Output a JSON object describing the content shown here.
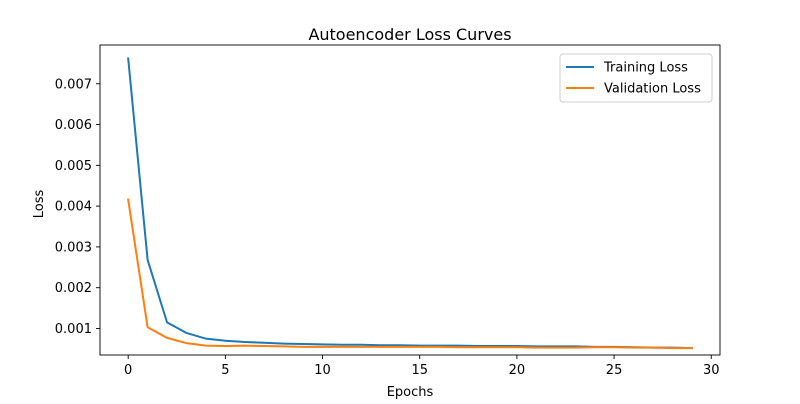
{
  "chart_data": {
    "type": "line",
    "title": "Autoencoder Loss Curves",
    "xlabel": "Epochs",
    "ylabel": "Loss",
    "xlim": [
      -1.45,
      30.45
    ],
    "ylim": [
      0.00035,
      0.00795
    ],
    "x_ticks": [
      0,
      5,
      10,
      15,
      20,
      25,
      30
    ],
    "x_tick_labels": [
      "0",
      "5",
      "10",
      "15",
      "20",
      "25",
      "30"
    ],
    "y_ticks": [
      0.001,
      0.002,
      0.003,
      0.004,
      0.005,
      0.006,
      0.007
    ],
    "y_tick_labels": [
      "0.001",
      "0.002",
      "0.003",
      "0.004",
      "0.005",
      "0.006",
      "0.007"
    ],
    "grid": false,
    "legend_position": "top-right",
    "x": [
      0,
      1,
      2,
      3,
      4,
      5,
      6,
      7,
      8,
      9,
      10,
      11,
      12,
      13,
      14,
      15,
      16,
      17,
      18,
      19,
      20,
      21,
      22,
      23,
      24,
      25,
      26,
      27,
      28,
      29
    ],
    "series": [
      {
        "name": "Training Loss",
        "color": "#1f77b4",
        "values": [
          0.00762,
          0.00268,
          0.00115,
          0.00089,
          0.00075,
          0.0007,
          0.00067,
          0.00065,
          0.00063,
          0.00062,
          0.00061,
          0.0006,
          0.0006,
          0.00059,
          0.00059,
          0.00058,
          0.00058,
          0.00058,
          0.00057,
          0.00057,
          0.00057,
          0.00056,
          0.00056,
          0.00056,
          0.00055,
          0.00055,
          0.00054,
          0.00053,
          0.00053,
          0.00052
        ]
      },
      {
        "name": "Validation Loss",
        "color": "#ff7f0e",
        "values": [
          0.00416,
          0.00103,
          0.00077,
          0.00064,
          0.00058,
          0.00057,
          0.00058,
          0.00057,
          0.00056,
          0.00055,
          0.00055,
          0.00055,
          0.00055,
          0.00055,
          0.00055,
          0.00055,
          0.00055,
          0.00054,
          0.00054,
          0.00054,
          0.00054,
          0.00053,
          0.00053,
          0.00053,
          0.00054,
          0.00054,
          0.00053,
          0.00053,
          0.00052,
          0.00052
        ]
      }
    ]
  }
}
